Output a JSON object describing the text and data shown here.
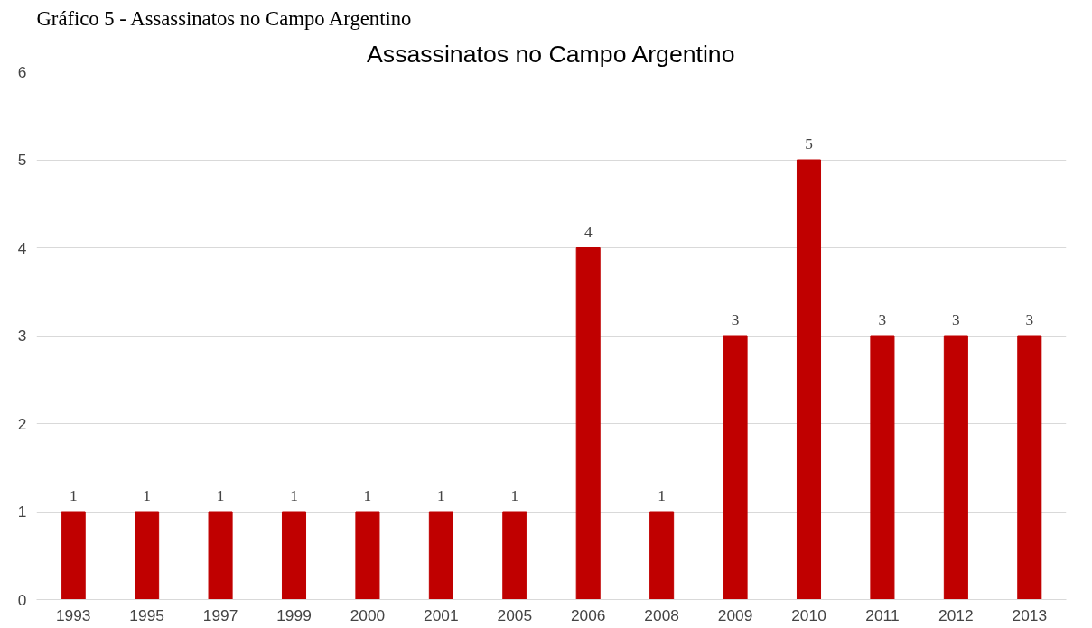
{
  "chart_data": {
    "type": "bar",
    "title": "Assassinatos no Campo Argentino",
    "annotations": [
      "Gráfico 5 - Assassinatos no Campo Argentino"
    ],
    "categories": [
      "1993",
      "1995",
      "1997",
      "1999",
      "2000",
      "2001",
      "2005",
      "2006",
      "2008",
      "2009",
      "2010",
      "2011",
      "2012",
      "2013"
    ],
    "values": [
      1,
      1,
      1,
      1,
      1,
      1,
      1,
      4,
      1,
      3,
      5,
      3,
      3,
      3
    ],
    "color": "#c00000",
    "ylim": [
      0,
      6
    ],
    "yticks": [
      0,
      1,
      2,
      3,
      4,
      5,
      6
    ],
    "grid": "y",
    "data_labels": true
  }
}
